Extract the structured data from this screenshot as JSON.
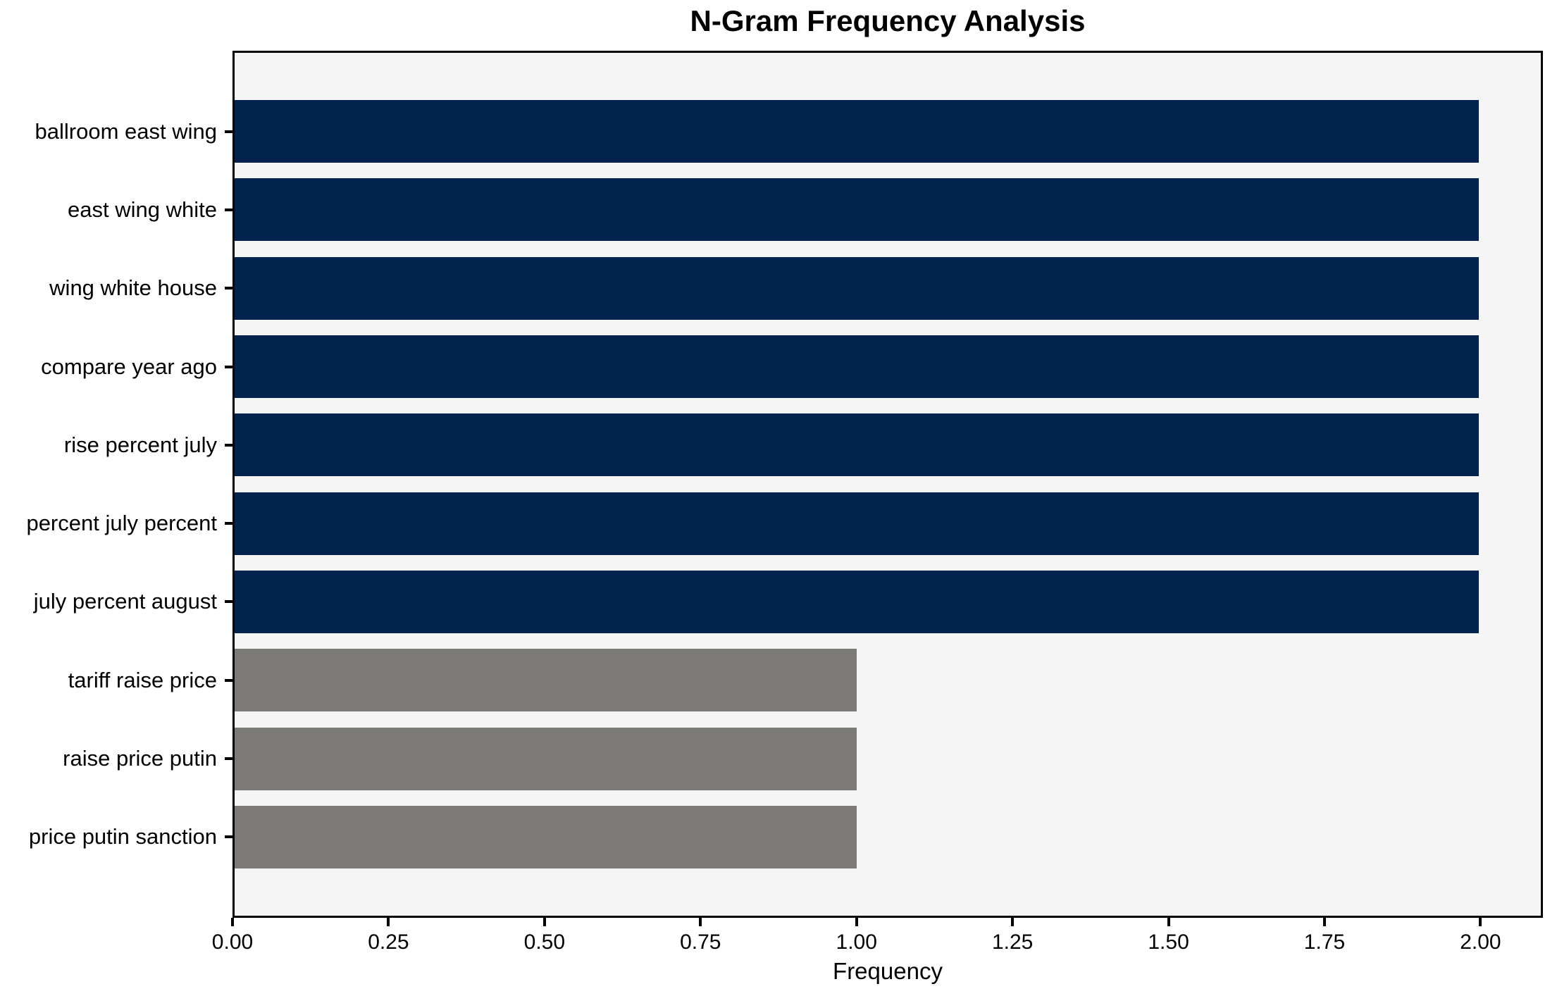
{
  "figure": {
    "background": "#ffffff",
    "plot_background": "#f5f5f5",
    "spine_color": "#000000"
  },
  "chart_data": {
    "type": "bar",
    "orientation": "horizontal",
    "title": "N-Gram Frequency Analysis",
    "xlabel": "Frequency",
    "ylabel": "",
    "grid": false,
    "legend": "none",
    "categories": [
      "ballroom east wing",
      "east wing white",
      "wing white house",
      "compare year ago",
      "rise percent july",
      "percent july percent",
      "july percent august",
      "tariff raise price",
      "raise price putin",
      "price putin sanction"
    ],
    "values": [
      2,
      2,
      2,
      2,
      2,
      2,
      2,
      1,
      1,
      1
    ],
    "bar_colors": [
      "#02234d",
      "#02234d",
      "#02234d",
      "#02234d",
      "#02234d",
      "#02234d",
      "#02234d",
      "#7b7a77",
      "#7b7a77",
      "#7b7a77"
    ],
    "xlim": [
      0,
      2.1
    ],
    "xticks": {
      "values": [
        0,
        0.25,
        0.5,
        0.75,
        1.0,
        1.25,
        1.5,
        1.75,
        2.0
      ],
      "labels": [
        "0.00",
        "0.25",
        "0.50",
        "0.75",
        "1.00",
        "1.25",
        "1.50",
        "1.75",
        "2.00"
      ]
    }
  }
}
